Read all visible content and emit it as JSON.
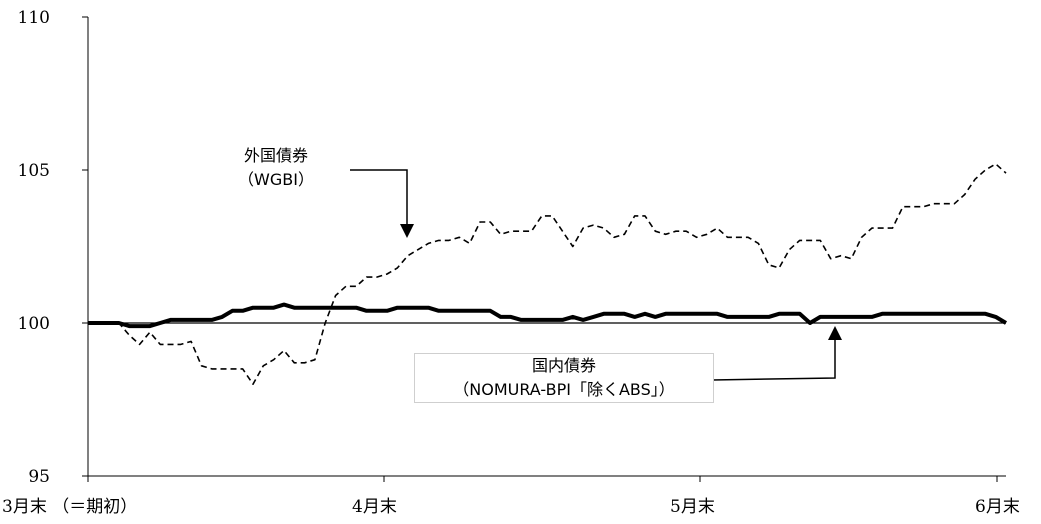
{
  "chart_data": {
    "type": "line",
    "x_labels": [
      "3月末 （＝期初）",
      "4月末",
      "5月末",
      "6月末"
    ],
    "y_ticks": [
      95,
      100,
      105,
      110
    ],
    "ylim": [
      95,
      110
    ],
    "baseline": 100,
    "series": [
      {
        "name": "外国債券（WGBI）",
        "style": "dashed",
        "color": "#000000",
        "values": [
          100.0,
          100.0,
          100.0,
          100.0,
          99.6,
          99.3,
          99.7,
          99.3,
          99.3,
          99.3,
          99.4,
          98.6,
          98.5,
          98.5,
          98.5,
          98.5,
          98.0,
          98.6,
          98.8,
          99.1,
          98.7,
          98.7,
          98.8,
          100.0,
          100.9,
          101.2,
          101.2,
          101.5,
          101.5,
          101.6,
          101.8,
          102.2,
          102.4,
          102.6,
          102.7,
          102.7,
          102.8,
          102.6,
          103.3,
          103.3,
          102.9,
          103.0,
          103.0,
          103.0,
          103.5,
          103.5,
          103.0,
          102.5,
          103.1,
          103.2,
          103.1,
          102.8,
          102.9,
          103.5,
          103.5,
          103.0,
          102.9,
          103.0,
          103.0,
          102.8,
          102.9,
          103.1,
          102.8,
          102.8,
          102.8,
          102.6,
          101.9,
          101.8,
          102.4,
          102.7,
          102.7,
          102.7,
          102.1,
          102.2,
          102.1,
          102.8,
          103.1,
          103.1,
          103.1,
          103.8,
          103.8,
          103.8,
          103.9,
          103.9,
          103.9,
          104.2,
          104.7,
          105.0,
          105.2,
          104.9
        ]
      },
      {
        "name": "国内債券（NOMURA-BPI「除くABS」）",
        "style": "solid-bold",
        "color": "#000000",
        "values": [
          100.0,
          100.0,
          100.0,
          100.0,
          99.9,
          99.9,
          99.9,
          100.0,
          100.1,
          100.1,
          100.1,
          100.1,
          100.1,
          100.2,
          100.4,
          100.4,
          100.5,
          100.5,
          100.5,
          100.6,
          100.5,
          100.5,
          100.5,
          100.5,
          100.5,
          100.5,
          100.5,
          100.4,
          100.4,
          100.4,
          100.5,
          100.5,
          100.5,
          100.5,
          100.4,
          100.4,
          100.4,
          100.4,
          100.4,
          100.4,
          100.2,
          100.2,
          100.1,
          100.1,
          100.1,
          100.1,
          100.1,
          100.2,
          100.1,
          100.2,
          100.3,
          100.3,
          100.3,
          100.2,
          100.3,
          100.2,
          100.3,
          100.3,
          100.3,
          100.3,
          100.3,
          100.3,
          100.2,
          100.2,
          100.2,
          100.2,
          100.2,
          100.3,
          100.3,
          100.3,
          100.0,
          100.2,
          100.2,
          100.2,
          100.2,
          100.2,
          100.2,
          100.3,
          100.3,
          100.3,
          100.3,
          100.3,
          100.3,
          100.3,
          100.3,
          100.3,
          100.3,
          100.3,
          100.2,
          100.0
        ]
      }
    ]
  },
  "annotations": {
    "foreign": {
      "line1": "外国債券",
      "line2": "（WGBI）"
    },
    "domestic": {
      "line1": "国内債券",
      "line2": "（NOMURA-BPI「除くABS」）"
    }
  }
}
